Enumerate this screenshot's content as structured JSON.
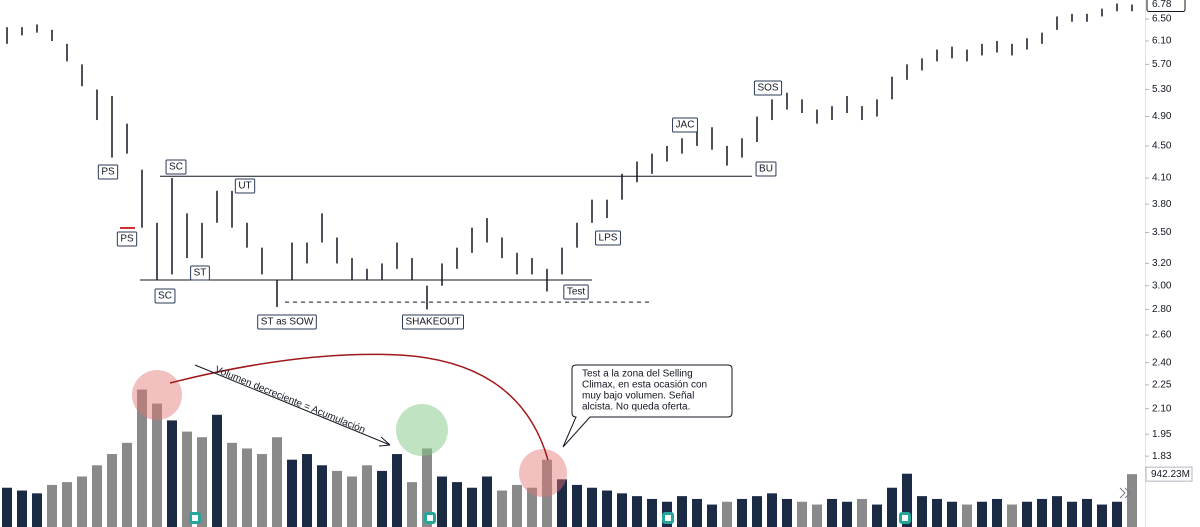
{
  "chart_data": {
    "type": "ohlc",
    "log_scale": true,
    "ylim": [
      1.49,
      6.87
    ],
    "yticks": [
      {
        "value": 6.5,
        "label": "6.50"
      },
      {
        "value": 6.1,
        "label": "6.10"
      },
      {
        "value": 5.7,
        "label": "5.70"
      },
      {
        "value": 5.3,
        "label": "5.30"
      },
      {
        "value": 4.9,
        "label": "4.90"
      },
      {
        "value": 4.5,
        "label": "4.50"
      },
      {
        "value": 4.1,
        "label": "4.10"
      },
      {
        "value": 3.8,
        "label": "3.80"
      },
      {
        "value": 3.5,
        "label": "3.50"
      },
      {
        "value": 3.2,
        "label": "3.20"
      },
      {
        "value": 3,
        "label": "3.00"
      },
      {
        "value": 2.8,
        "label": "2.80"
      },
      {
        "value": 2.6,
        "label": "2.60"
      },
      {
        "value": 2.4,
        "label": "2.40"
      },
      {
        "value": 2.25,
        "label": "2.25"
      },
      {
        "value": 2.1,
        "label": "2.10"
      },
      {
        "value": 1.95,
        "label": "1.95"
      },
      {
        "value": 1.83,
        "label": "1.83"
      }
    ],
    "last_price": 6.78,
    "bar_color": "#131722",
    "high": [
      6.35,
      6.35,
      6.4,
      6.3,
      6.05,
      5.7,
      5.3,
      5.2,
      4.8,
      4.2,
      3.6,
      4.1,
      3.7,
      3.6,
      3.95,
      3.95,
      3.6,
      3.35,
      3.05,
      3.4,
      3.4,
      3.7,
      3.45,
      3.25,
      3.15,
      3.2,
      3.4,
      3.25,
      3.0,
      3.2,
      3.35,
      3.55,
      3.65,
      3.45,
      3.3,
      3.25,
      3.15,
      3.35,
      3.6,
      3.85,
      3.85,
      4.15,
      4.3,
      4.4,
      4.5,
      4.6,
      4.7,
      4.75,
      4.5,
      4.6,
      4.9,
      5.15,
      5.25,
      5.15,
      5.0,
      5.05,
      5.2,
      5.05,
      5.15,
      5.5,
      5.7,
      5.8,
      5.95,
      6.0,
      5.95,
      6.05,
      6.1,
      6.05,
      6.15,
      6.25,
      6.55,
      6.6,
      6.6,
      6.7,
      6.8,
      6.78
    ],
    "low": [
      6.05,
      6.2,
      6.25,
      6.1,
      5.75,
      5.35,
      4.85,
      4.35,
      4.4,
      3.55,
      3.05,
      3.1,
      3.25,
      3.25,
      3.6,
      3.55,
      3.35,
      3.1,
      2.82,
      3.05,
      3.2,
      3.4,
      3.2,
      3.05,
      3.05,
      3.05,
      3.15,
      3.05,
      2.8,
      3.0,
      3.15,
      3.3,
      3.4,
      3.25,
      3.1,
      3.1,
      2.95,
      3.1,
      3.35,
      3.6,
      3.65,
      3.85,
      4.05,
      4.15,
      4.3,
      4.4,
      4.5,
      4.45,
      4.25,
      4.35,
      4.55,
      4.85,
      5.0,
      4.95,
      4.8,
      4.85,
      4.95,
      4.85,
      4.9,
      5.15,
      5.45,
      5.6,
      5.75,
      5.8,
      5.75,
      5.85,
      5.9,
      5.85,
      5.95,
      6.05,
      6.3,
      6.45,
      6.45,
      6.55,
      6.65,
      6.65
    ],
    "levels": [
      4.12,
      3.05,
      2.86
    ],
    "annotations": [
      "PS",
      "PS",
      "SC",
      "SC",
      "ST",
      "UT",
      "ST as SOW",
      "SHAKEOUT",
      "Test",
      "LPS",
      "JAC",
      "SOS",
      "BU"
    ],
    "arrow_text": "Volumen decreciente = Acumulación",
    "callout": [
      "Test a la zona del Selling",
      "Climax, en esta ocasión con",
      "muy bajo volumen. Señal",
      "alcista. No queda oferta."
    ],
    "volume": {
      "ylim": [
        0,
        2620
      ],
      "up_color": "#1b2a45",
      "down_color": "#8a8a8a",
      "values": [
        700,
        650,
        600,
        750,
        800,
        900,
        1100,
        1300,
        1500,
        2450,
        2200,
        1900,
        1700,
        1600,
        2000,
        1500,
        1400,
        1300,
        1600,
        1200,
        1300,
        1100,
        1000,
        900,
        1100,
        1000,
        1300,
        800,
        1400,
        900,
        800,
        700,
        900,
        650,
        750,
        700,
        1200,
        850,
        750,
        700,
        650,
        600,
        550,
        500,
        450,
        550,
        500,
        400,
        450,
        500,
        550,
        600,
        500,
        450,
        400,
        500,
        450,
        500,
        400,
        700,
        950,
        550,
        500,
        450,
        400,
        450,
        500,
        400,
        450,
        500,
        550,
        450,
        500,
        400,
        450,
        942.23
      ],
      "last_label": "942.23M"
    }
  }
}
